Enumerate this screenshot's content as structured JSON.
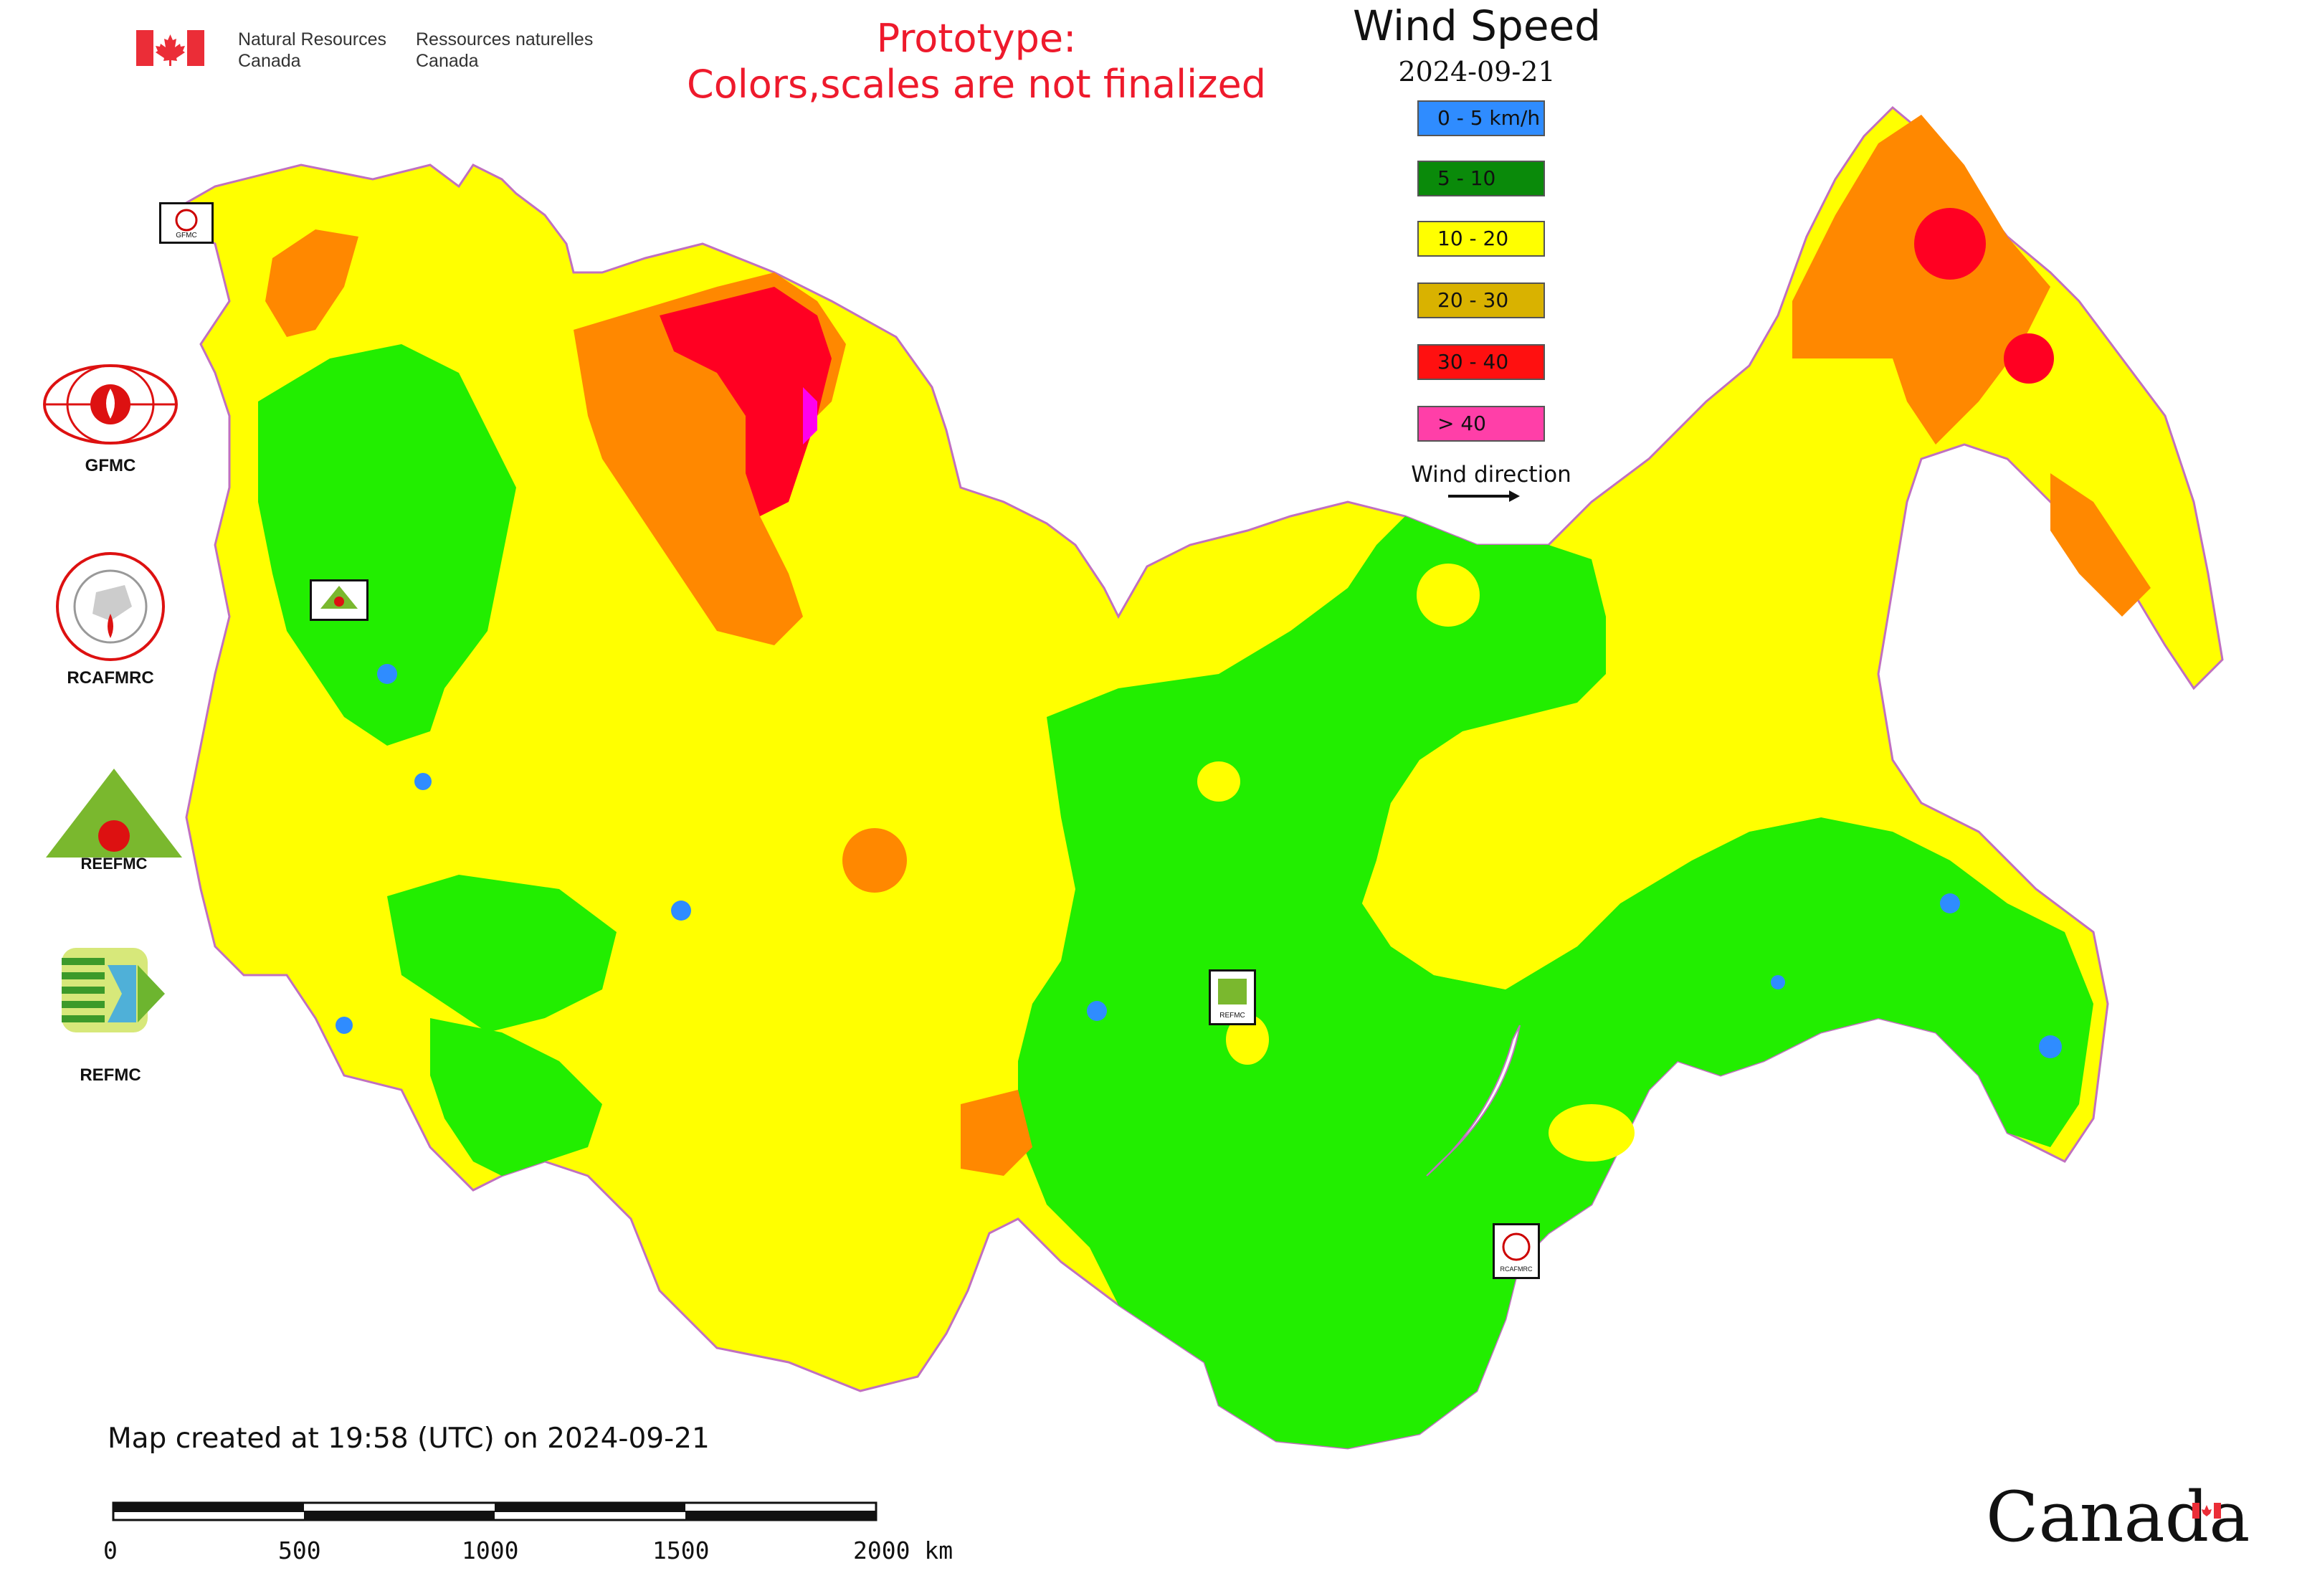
{
  "header": {
    "agency_en": [
      "Natural Resources",
      "Canada"
    ],
    "agency_fr": [
      "Ressources naturelles",
      "Canada"
    ],
    "prototype_line1": "Prototype:",
    "prototype_line2": "Colors,scales are not finalized"
  },
  "legend": {
    "title": "Wind Speed",
    "date": "2024-09-21",
    "classes": [
      {
        "label": "0 - 5 km/h",
        "color": "#2f8cff"
      },
      {
        "label": "5 - 10",
        "color": "#0a8a0a"
      },
      {
        "label": "10 - 20",
        "color": "#ffff00"
      },
      {
        "label": "20 - 30",
        "color": "#d9b200"
      },
      {
        "label": "30 - 40",
        "color": "#ff1010"
      },
      {
        "label": "> 40",
        "color": "#ff3fa8"
      }
    ],
    "wind_direction_label": "Wind direction"
  },
  "map_colors": {
    "land_yellow": "#ffff00",
    "land_green": "#22ee00",
    "land_orange": "#ff8800",
    "land_red": "#ff0022",
    "land_magenta": "#ff00ee",
    "calm_blue": "#2f8cff",
    "border": "#c070c0"
  },
  "side_logos": [
    {
      "label": "GFMC"
    },
    {
      "label": "RCAFMRC"
    },
    {
      "label": ""
    },
    {
      "label": "REFMC"
    }
  ],
  "map_markers": {
    "gfmc": "GFMC",
    "reefmc": "REEFMC",
    "refmc": "REFMC",
    "rcafmrc": "RCAFMRC"
  },
  "footer": {
    "created": "Map created at 19:58 (UTC) on 2024-09-21",
    "scale_labels": [
      "0",
      "500",
      "1000",
      "1500",
      "2000 km"
    ],
    "wordmark": "Canada"
  }
}
